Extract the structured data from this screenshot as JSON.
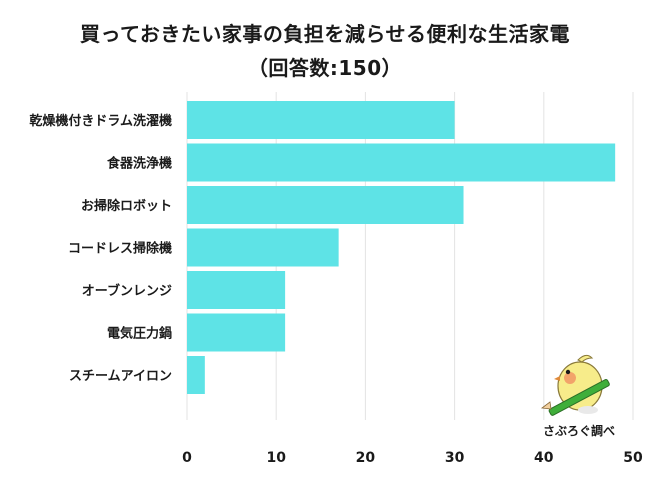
{
  "chart_data": {
    "type": "bar",
    "orientation": "horizontal",
    "title": "買っておきたい家事の負担を減らせる便利な生活家電",
    "subtitle": "（回答数:150）",
    "categories": [
      "乾燥機付きドラム洗濯機",
      "食器洗浄機",
      "お掃除ロボット",
      "コードレス掃除機",
      "オーブンレンジ",
      "電気圧力鍋",
      "スチームアイロン"
    ],
    "values": [
      30,
      48,
      31,
      17,
      11,
      11,
      2
    ],
    "xlim": [
      0,
      50
    ],
    "xticks": [
      0,
      10,
      20,
      30,
      40,
      50
    ],
    "grid": true,
    "bar_color": "#5ee3e6"
  },
  "credit": "さぶろぐ調べ",
  "mascot_icon": "bird-with-pencil-icon"
}
